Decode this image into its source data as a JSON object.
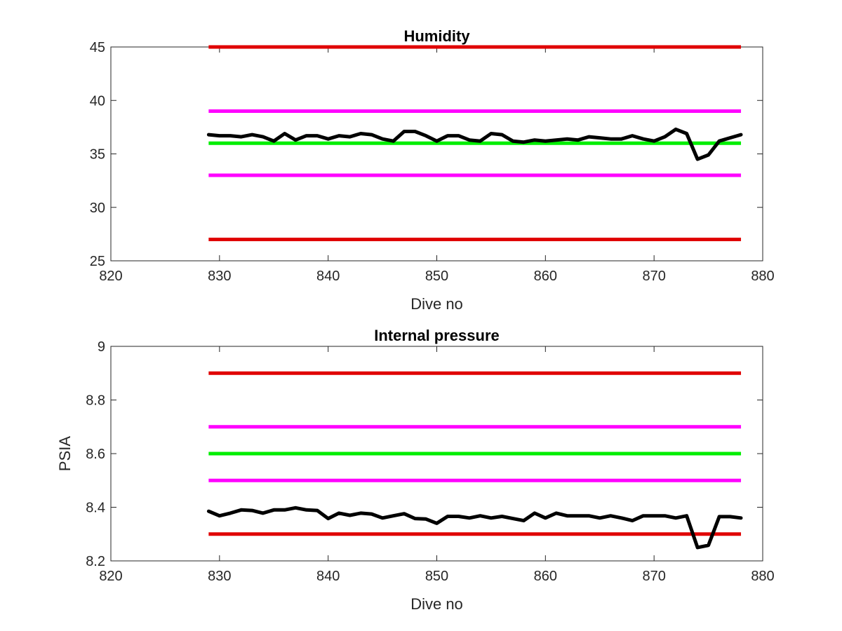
{
  "chart_data": [
    {
      "type": "line",
      "title": "Humidity",
      "xlabel": "Dive no",
      "ylabel": "",
      "xlim": [
        820,
        880
      ],
      "ylim": [
        25,
        45
      ],
      "xticks": [
        "820",
        "830",
        "840",
        "850",
        "860",
        "870",
        "880"
      ],
      "yticks": [
        "25",
        "30",
        "35",
        "40",
        "45"
      ],
      "grid": false,
      "reference_lines": [
        {
          "y": 45,
          "color": "#e00000",
          "x_range": [
            829,
            878
          ]
        },
        {
          "y": 39,
          "color": "#ff00ff",
          "x_range": [
            829,
            878
          ]
        },
        {
          "y": 36,
          "color": "#00ee00",
          "x_range": [
            829,
            878
          ]
        },
        {
          "y": 33,
          "color": "#ff00ff",
          "x_range": [
            829,
            878
          ]
        },
        {
          "y": 27,
          "color": "#e00000",
          "x_range": [
            829,
            878
          ]
        }
      ],
      "series": [
        {
          "color": "#000000",
          "x": [
            829,
            830,
            831,
            832,
            833,
            834,
            835,
            836,
            837,
            838,
            839,
            840,
            841,
            842,
            843,
            844,
            845,
            846,
            847,
            848,
            849,
            850,
            851,
            852,
            853,
            854,
            855,
            856,
            857,
            858,
            859,
            860,
            861,
            862,
            863,
            864,
            865,
            866,
            867,
            868,
            869,
            870,
            871,
            872,
            873,
            874,
            875,
            876,
            877,
            878
          ],
          "values": [
            36.8,
            36.7,
            36.7,
            36.6,
            36.8,
            36.6,
            36.2,
            36.9,
            36.3,
            36.7,
            36.7,
            36.4,
            36.7,
            36.6,
            36.9,
            36.8,
            36.4,
            36.2,
            37.1,
            37.1,
            36.7,
            36.2,
            36.7,
            36.7,
            36.3,
            36.2,
            36.9,
            36.8,
            36.2,
            36.1,
            36.3,
            36.2,
            36.3,
            36.4,
            36.3,
            36.6,
            36.5,
            36.4,
            36.4,
            36.7,
            36.4,
            36.2,
            36.6,
            37.3,
            36.9,
            34.5,
            34.9,
            36.2,
            36.5,
            36.8
          ]
        }
      ]
    },
    {
      "type": "line",
      "title": "Internal pressure",
      "xlabel": "Dive no",
      "ylabel": "PSIA",
      "xlim": [
        820,
        880
      ],
      "ylim": [
        8.2,
        9
      ],
      "xticks": [
        "820",
        "830",
        "840",
        "850",
        "860",
        "870",
        "880"
      ],
      "yticks": [
        "8.2",
        "8.4",
        "8.6",
        "8.8",
        "9"
      ],
      "grid": false,
      "reference_lines": [
        {
          "y": 8.9,
          "color": "#e00000",
          "x_range": [
            829,
            878
          ]
        },
        {
          "y": 8.7,
          "color": "#ff00ff",
          "x_range": [
            829,
            878
          ]
        },
        {
          "y": 8.6,
          "color": "#00ee00",
          "x_range": [
            829,
            878
          ]
        },
        {
          "y": 8.5,
          "color": "#ff00ff",
          "x_range": [
            829,
            878
          ]
        },
        {
          "y": 8.3,
          "color": "#e00000",
          "x_range": [
            829,
            878
          ]
        }
      ],
      "series": [
        {
          "color": "#000000",
          "x": [
            829,
            830,
            831,
            832,
            833,
            834,
            835,
            836,
            837,
            838,
            839,
            840,
            841,
            842,
            843,
            844,
            845,
            846,
            847,
            848,
            849,
            850,
            851,
            852,
            853,
            854,
            855,
            856,
            857,
            858,
            859,
            860,
            861,
            862,
            863,
            864,
            865,
            866,
            867,
            868,
            869,
            870,
            871,
            872,
            873,
            874,
            875,
            876,
            877,
            878
          ],
          "values": [
            8.385,
            8.368,
            8.378,
            8.39,
            8.388,
            8.378,
            8.39,
            8.39,
            8.398,
            8.39,
            8.388,
            8.358,
            8.378,
            8.37,
            8.378,
            8.375,
            8.36,
            8.368,
            8.376,
            8.358,
            8.356,
            8.34,
            8.366,
            8.366,
            8.36,
            8.368,
            8.36,
            8.366,
            8.358,
            8.35,
            8.378,
            8.36,
            8.378,
            8.368,
            8.368,
            8.368,
            8.36,
            8.368,
            8.36,
            8.35,
            8.368,
            8.368,
            8.368,
            8.36,
            8.368,
            8.25,
            8.258,
            8.365,
            8.365,
            8.36
          ]
        }
      ]
    }
  ]
}
